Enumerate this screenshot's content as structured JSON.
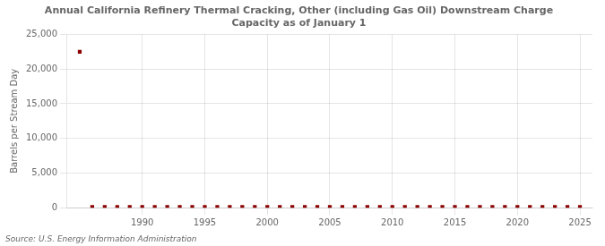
{
  "chart_data": {
    "type": "scatter",
    "title": "Annual California Refinery Thermal Cracking, Other (including Gas Oil) Downstream Charge\nCapacity as of January 1",
    "ylabel": "Barrels per Stream Day",
    "source": "Source: U.S. Energy Information Administration",
    "color": "#8b0000",
    "marker": "square",
    "grid": true,
    "xlim": [
      1984,
      2026
    ],
    "xticks": [
      1990,
      1995,
      2000,
      2005,
      2010,
      2015,
      2020,
      2025
    ],
    "ylim": [
      0,
      25000
    ],
    "yticks": [
      0,
      {
        "value": 5000,
        "label": "5,000"
      },
      {
        "value": 10000,
        "label": "10,000"
      },
      {
        "value": 15000,
        "label": "15,000"
      },
      {
        "value": 20000,
        "label": "20,000"
      },
      {
        "value": 25000,
        "label": "25,000"
      }
    ],
    "x": [
      1985,
      1986,
      1987,
      1988,
      1989,
      1990,
      1991,
      1992,
      1993,
      1994,
      1995,
      1996,
      1997,
      1998,
      1999,
      2000,
      2001,
      2002,
      2003,
      2004,
      2005,
      2006,
      2007,
      2008,
      2009,
      2010,
      2011,
      2012,
      2013,
      2014,
      2015,
      2016,
      2017,
      2018,
      2019,
      2020,
      2021,
      2022,
      2023,
      2024,
      2025
    ],
    "values": [
      22500,
      100,
      100,
      100,
      100,
      100,
      100,
      100,
      100,
      100,
      100,
      100,
      100,
      100,
      100,
      100,
      100,
      100,
      100,
      100,
      100,
      100,
      100,
      100,
      100,
      100,
      100,
      100,
      100,
      100,
      100,
      100,
      100,
      100,
      100,
      100,
      100,
      100,
      100,
      100,
      100
    ]
  }
}
